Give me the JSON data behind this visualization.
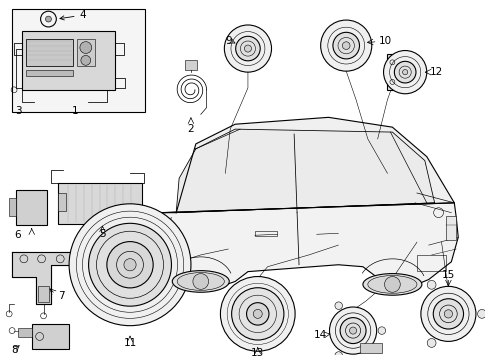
{
  "bg_color": "#ffffff",
  "line_color": "#000000",
  "gray_fill": "#f0f0f0",
  "dark_gray": "#d0d0d0",
  "mid_gray": "#e0e0e0",
  "box_fill": "#f5f5f5"
}
